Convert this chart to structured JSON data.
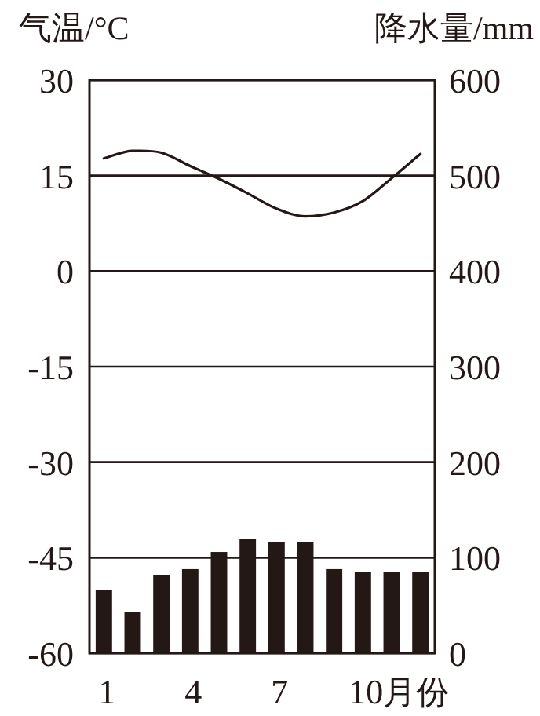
{
  "chart_data": {
    "type": "bar",
    "ylabel": "气温/°C",
    "y2label": "降水量/mm",
    "xlabel": "月份",
    "categories": [
      "1",
      null,
      null,
      "4",
      null,
      null,
      "7",
      null,
      null,
      "10",
      null,
      null
    ],
    "series": [
      {
        "axis": "y2",
        "color": "#231815",
        "values": [
          66,
          43,
          82,
          88,
          106,
          120,
          116,
          116,
          88,
          85,
          85,
          85
        ]
      },
      {
        "type": "line",
        "axis": "y",
        "color": "#231815",
        "values": [
          17.7,
          18.9,
          18.6,
          16.5,
          14.5,
          12.2,
          9.8,
          8.6,
          9.2,
          11,
          14.6,
          18.4
        ]
      }
    ],
    "ylim": [
      -60,
      30
    ],
    "yticks": [
      -60,
      -45,
      -30,
      -15,
      0,
      15,
      30
    ],
    "y2lim": [
      0,
      600
    ],
    "y2ticks": [
      0,
      100,
      200,
      300,
      400,
      500,
      600
    ],
    "grid": "y"
  }
}
